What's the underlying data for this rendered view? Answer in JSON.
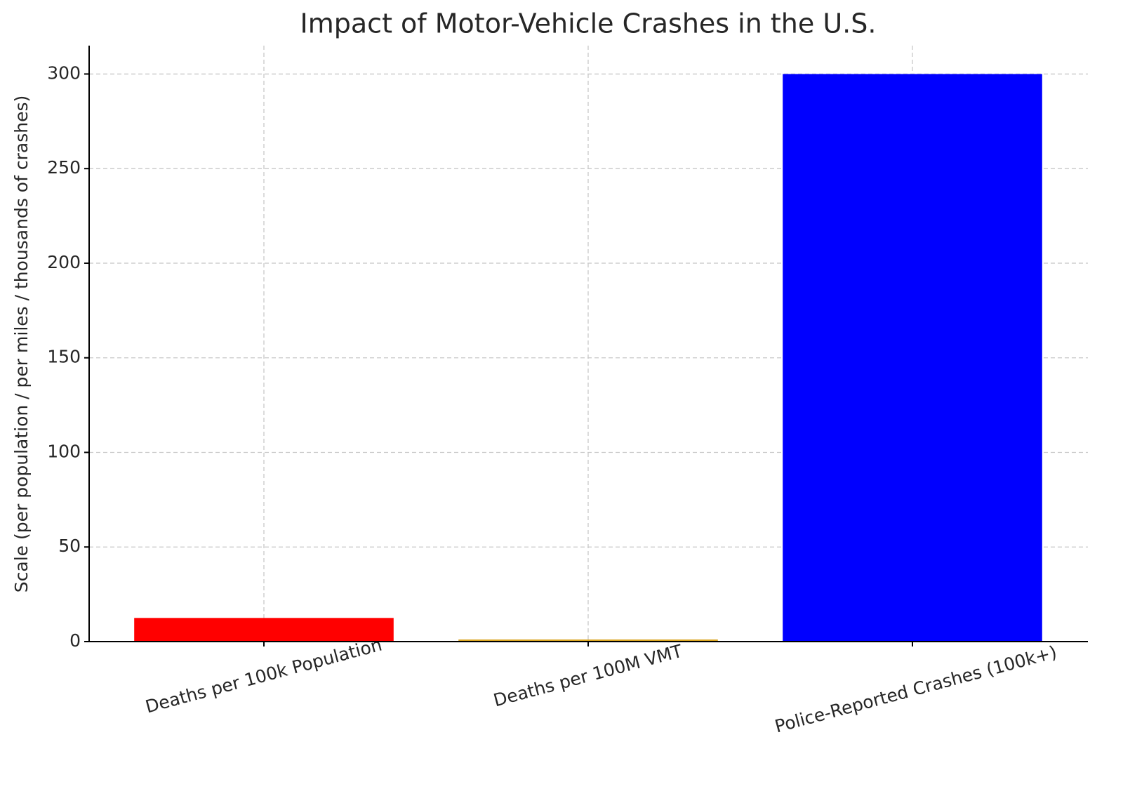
{
  "chart_data": {
    "type": "bar",
    "title": "Impact of Motor-Vehicle Crashes in the U.S.",
    "y_label": "Scale (per population / per miles / thousands of crashes)",
    "categories": [
      "Deaths per 100k Population",
      "Deaths per 100M VMT",
      "Police-Reported Crashes (100k+)"
    ],
    "values": [
      12.5,
      1.1,
      300
    ],
    "colors": [
      "#ff0000",
      "#daa520",
      "#0000ff"
    ],
    "ylim": [
      0,
      315
    ],
    "yticks": [
      0,
      50,
      100,
      150,
      200,
      250,
      300
    ],
    "grid": true
  }
}
